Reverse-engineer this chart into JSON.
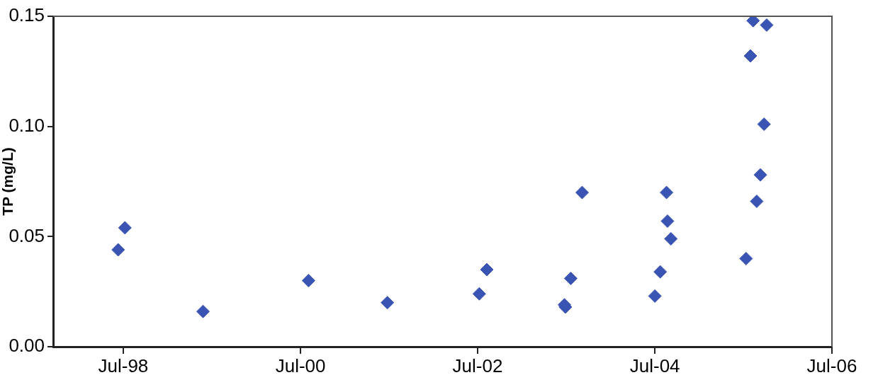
{
  "chart_data": {
    "type": "scatter",
    "ylabel": "TP (mg/L)",
    "x": [
      "1998-06-10",
      "1998-07-08",
      "1999-05-26",
      "2000-08-03",
      "2001-06-24",
      "2002-07-08",
      "2002-08-08",
      "2003-06-24",
      "2003-06-28",
      "2003-07-20",
      "2003-09-05",
      "2004-07-01",
      "2004-07-23",
      "2004-08-18",
      "2004-08-22",
      "2004-09-05",
      "2005-07-12",
      "2005-07-30",
      "2005-08-10",
      "2005-08-25",
      "2005-09-09",
      "2005-09-24",
      "2005-10-05"
    ],
    "series": [
      {
        "color": "#3a54b4",
        "values": [
          0.044,
          0.054,
          0.016,
          0.03,
          0.02,
          0.024,
          0.035,
          0.019,
          0.018,
          0.031,
          0.07,
          0.023,
          0.034,
          0.07,
          0.057,
          0.049,
          0.04,
          0.132,
          0.148,
          0.066,
          0.078,
          0.101,
          0.146
        ]
      }
    ],
    "xlim": [
      "1997-09-15",
      "2006-07"
    ],
    "xticks": [
      {
        "value": "1998-07",
        "label": "Jul-98"
      },
      {
        "value": "2000-07",
        "label": "Jul-00"
      },
      {
        "value": "2002-07",
        "label": "Jul-02"
      },
      {
        "value": "2004-07",
        "label": "Jul-04"
      },
      {
        "value": "2006-07",
        "label": "Jul-06"
      }
    ],
    "ylim": [
      0,
      0.15
    ],
    "yticks": [
      {
        "value": 0,
        "label": "0.00"
      },
      {
        "value": 0.05,
        "label": "0.05"
      },
      {
        "value": 0.1,
        "label": "0.10"
      },
      {
        "value": 0.15,
        "label": "0.15"
      }
    ],
    "grid": false,
    "legend": false,
    "marker": "diamond"
  }
}
